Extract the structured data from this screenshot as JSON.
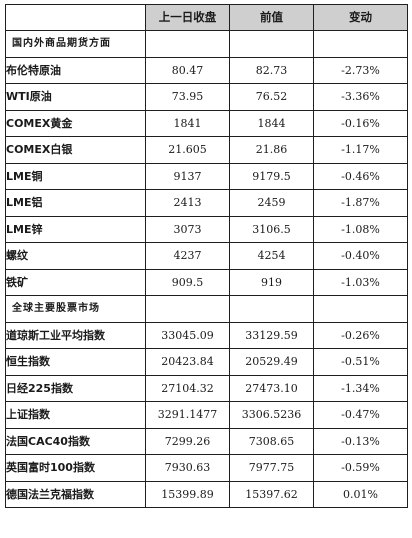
{
  "columns": {
    "name": "",
    "prev_close": "上一日收盘",
    "previous": "前值",
    "change": "变动"
  },
  "sections": [
    {
      "title": "国内外商品期货方面",
      "rows": [
        {
          "name": "布伦特原油",
          "prev_close": "80.47",
          "previous": "82.73",
          "change": "-2.73%"
        },
        {
          "name": "WTI原油",
          "prev_close": "73.95",
          "previous": "76.52",
          "change": "-3.36%"
        },
        {
          "name": "COMEX黄金",
          "prev_close": "1841",
          "previous": "1844",
          "change": "-0.16%"
        },
        {
          "name": "COMEX白银",
          "prev_close": "21.605",
          "previous": "21.86",
          "change": "-1.17%"
        },
        {
          "name": "LME铜",
          "prev_close": "9137",
          "previous": "9179.5",
          "change": "-0.46%"
        },
        {
          "name": "LME铝",
          "prev_close": "2413",
          "previous": "2459",
          "change": "-1.87%"
        },
        {
          "name": "LME锌",
          "prev_close": "3073",
          "previous": "3106.5",
          "change": "-1.08%"
        },
        {
          "name": "螺纹",
          "prev_close": "4237",
          "previous": "4254",
          "change": "-0.40%"
        },
        {
          "name": "铁矿",
          "prev_close": "909.5",
          "previous": "919",
          "change": "-1.03%"
        }
      ]
    },
    {
      "title": "全球主要股票市场",
      "rows": [
        {
          "name": "道琼斯工业平均指数",
          "prev_close": "33045.09",
          "previous": "33129.59",
          "change": "-0.26%"
        },
        {
          "name": "恒生指数",
          "prev_close": "20423.84",
          "previous": "20529.49",
          "change": "-0.51%"
        },
        {
          "name": "日经225指数",
          "prev_close": "27104.32",
          "previous": "27473.10",
          "change": "-1.34%"
        },
        {
          "name": "上证指数",
          "prev_close": "3291.1477",
          "previous": "3306.5236",
          "change": "-0.47%"
        },
        {
          "name": "法国CAC40指数",
          "prev_close": "7299.26",
          "previous": "7308.65",
          "change": "-0.13%"
        },
        {
          "name": "英国富时100指数",
          "prev_close": "7930.63",
          "previous": "7977.75",
          "change": "-0.59%"
        },
        {
          "name": "德国法兰克福指数",
          "prev_close": "15399.89",
          "previous": "15397.62",
          "change": "0.01%"
        }
      ]
    }
  ]
}
